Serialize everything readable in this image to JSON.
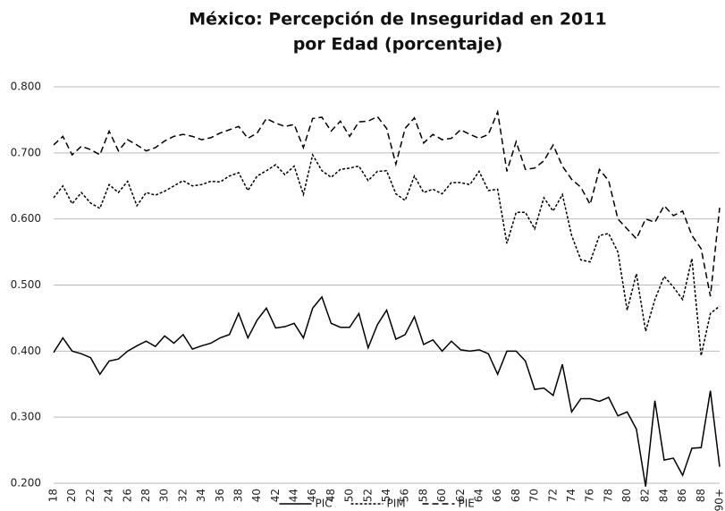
{
  "chart_data": {
    "type": "line",
    "title": [
      "México: Percepción de Inseguridad en 2011",
      "por Edad (porcentaje)"
    ],
    "categories": [
      "18",
      null,
      "20",
      null,
      "22",
      null,
      "24",
      null,
      "26",
      null,
      "28",
      null,
      "30",
      null,
      "32",
      null,
      "34",
      null,
      "36",
      null,
      "38",
      null,
      "40",
      null,
      "42",
      null,
      "44",
      null,
      "46",
      null,
      "48",
      null,
      "50",
      null,
      "52",
      null,
      "54",
      null,
      "56",
      null,
      "58",
      null,
      "60",
      null,
      "62",
      null,
      "64",
      null,
      "66",
      null,
      "68",
      null,
      "70",
      null,
      "72",
      null,
      "74",
      null,
      "76",
      null,
      "78",
      null,
      "80",
      null,
      "82",
      null,
      "84",
      null,
      "86",
      null,
      "88",
      null,
      "90+"
    ],
    "series": [
      {
        "name": "PIC",
        "color": "#000000",
        "dash": "solid",
        "values": [
          0.398,
          0.42,
          0.4,
          0.396,
          0.39,
          0.365,
          0.385,
          0.388,
          0.4,
          0.408,
          0.415,
          0.407,
          0.423,
          0.412,
          0.425,
          0.403,
          0.408,
          0.412,
          0.42,
          0.425,
          0.457,
          0.42,
          0.447,
          0.465,
          0.435,
          0.437,
          0.442,
          0.42,
          0.465,
          0.482,
          0.442,
          0.436,
          0.436,
          0.457,
          0.405,
          0.44,
          0.462,
          0.418,
          0.425,
          0.452,
          0.41,
          0.417,
          0.4,
          0.415,
          0.402,
          0.4,
          0.402,
          0.396,
          0.365,
          0.4,
          0.4,
          0.385,
          0.342,
          0.344,
          0.333,
          0.38,
          0.308,
          0.328,
          0.328,
          0.324,
          0.33,
          0.302,
          0.308,
          0.282,
          0.195,
          0.325,
          0.235,
          0.238,
          0.212,
          0.253,
          0.254,
          0.34,
          0.225
        ]
      },
      {
        "name": "PIM",
        "color": "#000000",
        "dash": "dotted",
        "values": [
          0.632,
          0.65,
          0.623,
          0.64,
          0.624,
          0.616,
          0.652,
          0.64,
          0.657,
          0.62,
          0.64,
          0.636,
          0.642,
          0.65,
          0.658,
          0.65,
          0.652,
          0.657,
          0.656,
          0.665,
          0.67,
          0.643,
          0.665,
          0.673,
          0.682,
          0.667,
          0.68,
          0.637,
          0.697,
          0.673,
          0.663,
          0.675,
          0.677,
          0.68,
          0.658,
          0.672,
          0.673,
          0.638,
          0.628,
          0.665,
          0.64,
          0.645,
          0.638,
          0.655,
          0.655,
          0.652,
          0.672,
          0.643,
          0.645,
          0.563,
          0.61,
          0.61,
          0.585,
          0.632,
          0.612,
          0.637,
          0.575,
          0.538,
          0.535,
          0.575,
          0.578,
          0.55,
          0.462,
          0.517,
          0.43,
          0.478,
          0.513,
          0.497,
          0.478,
          0.54,
          0.393,
          0.457,
          0.468
        ]
      },
      {
        "name": "PIE",
        "color": "#000000",
        "dash": "dashed",
        "values": [
          0.712,
          0.725,
          0.697,
          0.71,
          0.705,
          0.697,
          0.733,
          0.703,
          0.72,
          0.712,
          0.703,
          0.708,
          0.718,
          0.725,
          0.728,
          0.725,
          0.72,
          0.723,
          0.73,
          0.735,
          0.74,
          0.722,
          0.73,
          0.752,
          0.745,
          0.74,
          0.743,
          0.708,
          0.752,
          0.754,
          0.733,
          0.748,
          0.725,
          0.747,
          0.748,
          0.755,
          0.737,
          0.683,
          0.737,
          0.753,
          0.715,
          0.728,
          0.72,
          0.722,
          0.735,
          0.728,
          0.722,
          0.728,
          0.762,
          0.672,
          0.717,
          0.675,
          0.677,
          0.688,
          0.712,
          0.68,
          0.66,
          0.648,
          0.622,
          0.675,
          0.658,
          0.6,
          0.585,
          0.57,
          0.6,
          0.595,
          0.62,
          0.605,
          0.612,
          0.575,
          0.555,
          0.483,
          0.617
        ]
      }
    ],
    "ylim": [
      0.2,
      0.8
    ],
    "yticks": [
      {
        "value": 0.2,
        "label": "0.200"
      },
      {
        "value": 0.3,
        "label": "0.300"
      },
      {
        "value": 0.4,
        "label": "0.400"
      },
      {
        "value": 0.5,
        "label": "0.500"
      },
      {
        "value": 0.6,
        "label": "0.600"
      },
      {
        "value": 0.7,
        "label": "0.700"
      },
      {
        "value": 0.8,
        "label": "0.800"
      }
    ],
    "grid": true,
    "legend": "bottom"
  }
}
